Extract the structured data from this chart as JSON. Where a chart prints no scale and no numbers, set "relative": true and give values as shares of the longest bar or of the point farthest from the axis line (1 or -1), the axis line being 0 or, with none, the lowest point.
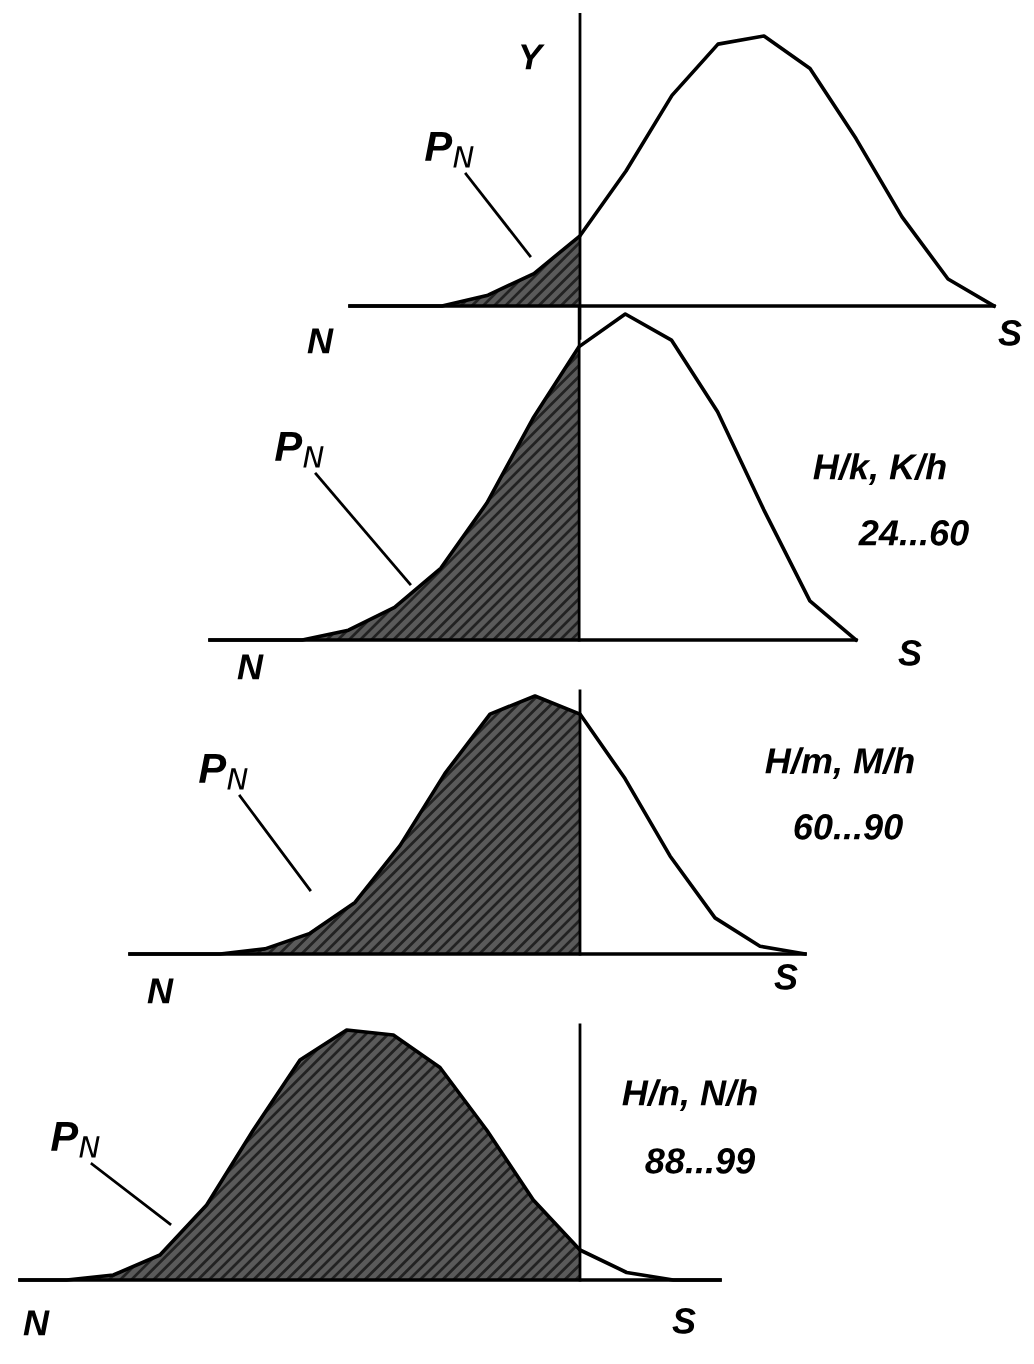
{
  "chart_data": [
    {
      "type": "line",
      "relative": true,
      "ylabel": "Y",
      "categories": [
        null,
        null,
        null,
        null,
        null,
        null,
        null,
        null,
        null,
        null,
        null,
        null,
        null,
        null,
        null
      ],
      "series": [
        {
          "color": "#000000",
          "values": [
            0,
            0,
            0,
            0.04,
            0.12,
            0.26,
            0.5,
            0.78,
            0.97,
            1.0,
            0.88,
            0.62,
            0.33,
            0.1,
            0
          ]
        },
        {
          "type": "area",
          "color": "#5a5a5a",
          "values": [
            0,
            0,
            0,
            0.04,
            0.12,
            0.26,
            null,
            null,
            null,
            null,
            null,
            null,
            null,
            null,
            null
          ]
        }
      ],
      "annotations": [
        "P$_{N}$",
        "N",
        "S"
      ]
    },
    {
      "type": "line",
      "relative": true,
      "categories": [
        null,
        null,
        null,
        null,
        null,
        null,
        null,
        null,
        null,
        null,
        null,
        null,
        null,
        null,
        null
      ],
      "series": [
        {
          "color": "#000000",
          "values": [
            0,
            0,
            0,
            0.03,
            0.1,
            0.22,
            0.42,
            0.68,
            0.9,
            1.0,
            0.92,
            0.7,
            0.4,
            0.12,
            0
          ]
        },
        {
          "type": "area",
          "color": "#5a5a5a",
          "values": [
            0,
            0,
            0,
            0.03,
            0.1,
            0.22,
            0.42,
            0.68,
            0.9,
            null,
            null,
            null,
            null,
            null,
            null
          ]
        }
      ],
      "annotations": [
        "P$_{N}$",
        "N",
        "S",
        "H/k, K/h",
        "24...60"
      ]
    },
    {
      "type": "line",
      "relative": true,
      "categories": [
        null,
        null,
        null,
        null,
        null,
        null,
        null,
        null,
        null,
        null,
        null,
        null,
        null,
        null,
        null,
        null
      ],
      "series": [
        {
          "color": "#000000",
          "values": [
            0,
            0,
            0,
            0.02,
            0.08,
            0.2,
            0.42,
            0.7,
            0.93,
            1.0,
            0.93,
            0.68,
            0.38,
            0.14,
            0.03,
            0
          ]
        },
        {
          "type": "area",
          "color": "#5a5a5a",
          "values": [
            0,
            0,
            0,
            0.02,
            0.08,
            0.2,
            0.42,
            0.7,
            0.93,
            1.0,
            0.93,
            null,
            null,
            null,
            null,
            null
          ]
        }
      ],
      "annotations": [
        "P$_{N}$",
        "N",
        "S",
        "H/m, M/h",
        "60...90"
      ]
    },
    {
      "type": "line",
      "relative": true,
      "categories": [
        null,
        null,
        null,
        null,
        null,
        null,
        null,
        null,
        null,
        null,
        null,
        null,
        null,
        null,
        null,
        null
      ],
      "series": [
        {
          "color": "#000000",
          "values": [
            0,
            0,
            0.02,
            0.1,
            0.3,
            0.6,
            0.88,
            1.0,
            0.98,
            0.85,
            0.6,
            0.32,
            0.12,
            0.03,
            0,
            0
          ]
        },
        {
          "type": "area",
          "color": "#5a5a5a",
          "values": [
            0,
            0,
            0.02,
            0.1,
            0.3,
            0.6,
            0.88,
            1.0,
            0.98,
            0.85,
            0.6,
            0.32,
            0.12,
            null,
            null,
            null
          ]
        }
      ],
      "annotations": [
        "P$_{N}$",
        "N",
        "S",
        "H/n, N/h",
        "88...99"
      ]
    }
  ]
}
